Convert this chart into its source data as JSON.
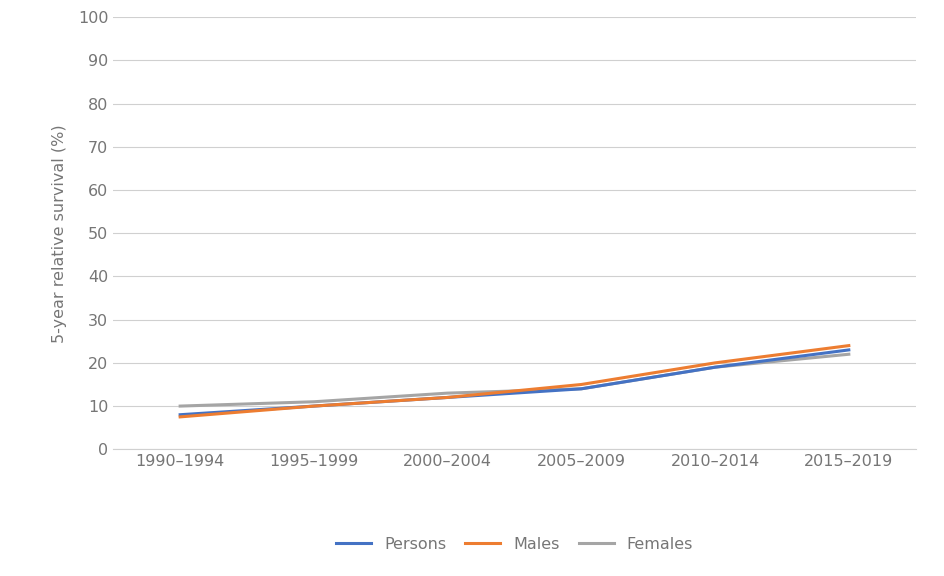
{
  "categories": [
    "1990–1994",
    "1995–1999",
    "2000–2004",
    "2005–2009",
    "2010–2014",
    "2015–2019"
  ],
  "persons": [
    8.0,
    10.0,
    12.0,
    14.0,
    19.0,
    23.0
  ],
  "males": [
    7.5,
    10.0,
    12.0,
    15.0,
    20.0,
    24.0
  ],
  "females": [
    10.0,
    11.0,
    13.0,
    14.0,
    19.0,
    22.0
  ],
  "persons_color": "#4472C4",
  "males_color": "#ED7D31",
  "females_color": "#A5A5A5",
  "ylabel": "5-year relative survival (%)",
  "ylim": [
    0,
    100
  ],
  "yticks": [
    0,
    10,
    20,
    30,
    40,
    50,
    60,
    70,
    80,
    90,
    100
  ],
  "grid_color": "#D0D0D0",
  "background_color": "#FFFFFF",
  "line_width": 2.2,
  "legend_labels": [
    "Persons",
    "Males",
    "Females"
  ],
  "tick_label_color": "#767676",
  "tick_fontsize": 11.5,
  "ylabel_fontsize": 11.5
}
